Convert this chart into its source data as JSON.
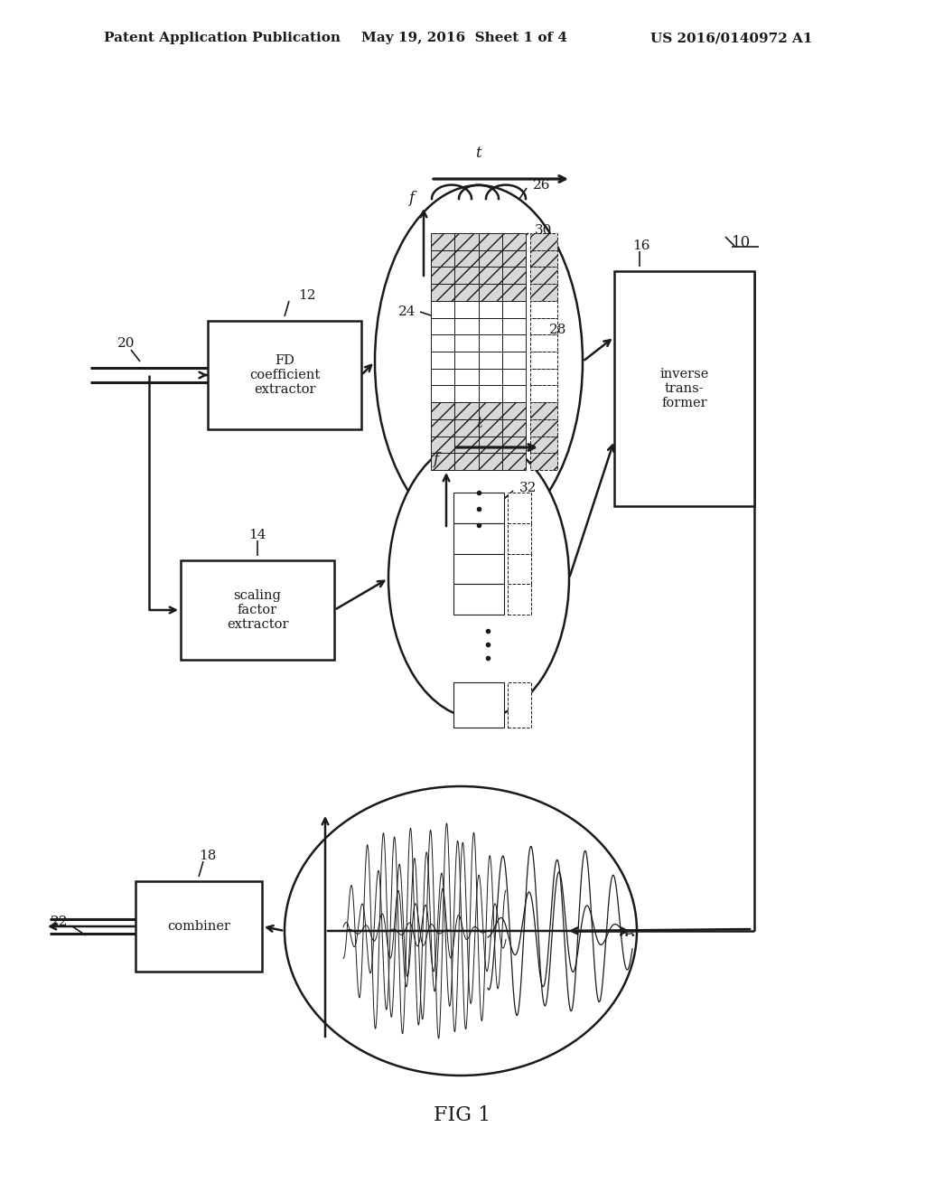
{
  "bg_color": "#ffffff",
  "header_left": "Patent Application Publication",
  "header_mid": "May 19, 2016  Sheet 1 of 4",
  "header_right": "US 2016/0140972 A1",
  "fig_label": "FIG 1",
  "label_10": "10",
  "label_12": "12",
  "label_14": "14",
  "label_16": "16",
  "label_18": "18",
  "label_20": "20",
  "label_22": "22",
  "label_24": "24",
  "label_26": "26",
  "label_28": "28",
  "label_30": "30",
  "label_32": "32",
  "box_fd_text": "FD\ncoefficient\nextractor",
  "box_scale_text": "scaling\nfactor\nextractor",
  "box_inverse_text": "inverse\ntrans-\nformer",
  "box_combiner_text": "combiner"
}
